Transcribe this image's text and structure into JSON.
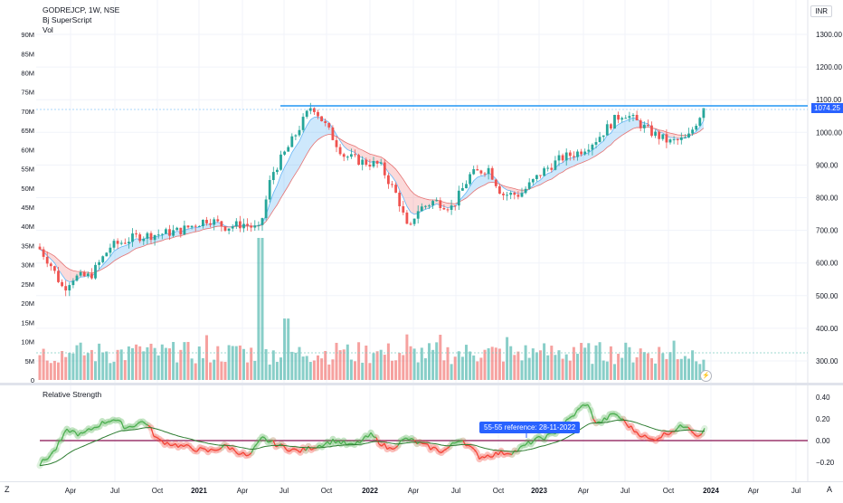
{
  "legend": {
    "symbol": "GODREJCP, 1W, NSE",
    "indicator": "Bj SuperScript",
    "volume": "Vol"
  },
  "currency": "INR",
  "last_price": "1074.25",
  "price_axis": [
    "1300.00",
    "1200.00",
    "1100.00",
    "1000.00",
    "900.00",
    "800.00",
    "700.00",
    "600.00",
    "500.00",
    "400.00",
    "300.00"
  ],
  "volume_axis": [
    "90M",
    "85M",
    "80M",
    "75M",
    "70M",
    "65M",
    "60M",
    "55M",
    "50M",
    "45M",
    "40M",
    "35M",
    "30M",
    "25M",
    "20M",
    "15M",
    "10M",
    "5M",
    "0"
  ],
  "rs": {
    "title": "Relative Strength",
    "axis": [
      "0.40",
      "0.20",
      "0.00",
      "−0.20"
    ],
    "reference_label": "55-55 reference: 28-11-2022"
  },
  "time_axis": [
    "Apr",
    "Jul",
    "Oct",
    "2021",
    "Apr",
    "Jul",
    "Oct",
    "2022",
    "Apr",
    "Jul",
    "Oct",
    "2023",
    "Apr",
    "Jul",
    "Oct",
    "2024",
    "Apr",
    "Jul"
  ],
  "corner_left": "Z",
  "corner_right": "A",
  "flash_icon": "⚡",
  "colors": {
    "up": "#26a69a",
    "down": "#ef5350",
    "line_blue": "#2196f3",
    "rs_green": "#4caf50",
    "rs_red": "#f44336",
    "rs_base": "#2e7d32",
    "zero_line": "#880e4f"
  }
}
